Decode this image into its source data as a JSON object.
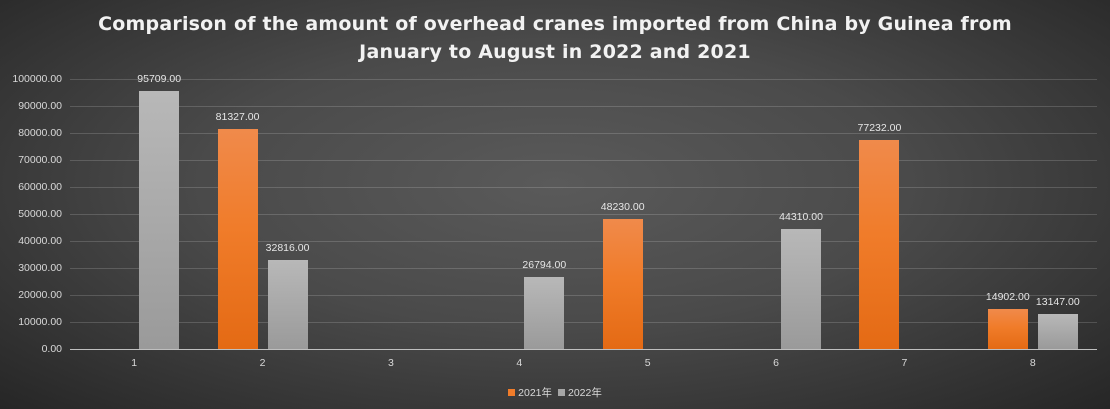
{
  "chart_data": {
    "type": "bar",
    "title": "Comparison of the amount of overhead cranes imported from China by Guinea from January to August in 2022 and 2021",
    "title_lines": [
      "Comparison of the amount of overhead cranes imported from China by Guinea from",
      "January to August in 2022 and 2021"
    ],
    "xlabel": "",
    "ylabel": "",
    "categories": [
      "1",
      "2",
      "3",
      "4",
      "5",
      "6",
      "7",
      "8"
    ],
    "series": [
      {
        "name": "2021年",
        "color": "#f07c2a",
        "values": [
          null,
          81327.0,
          null,
          null,
          48230.0,
          null,
          77232.0,
          14902.0
        ]
      },
      {
        "name": "2022年",
        "color": "#a6a6a6",
        "values": [
          95709.0,
          32816.0,
          null,
          26794.0,
          null,
          44310.0,
          null,
          13147.0
        ]
      }
    ],
    "ylim": [
      0,
      100000
    ],
    "yticks": [
      "0.00",
      "10000.00",
      "20000.00",
      "30000.00",
      "40000.00",
      "50000.00",
      "60000.00",
      "70000.00",
      "80000.00",
      "90000.00",
      "100000.00"
    ],
    "data_labels": true,
    "grid": true,
    "legend_position": "bottom"
  }
}
